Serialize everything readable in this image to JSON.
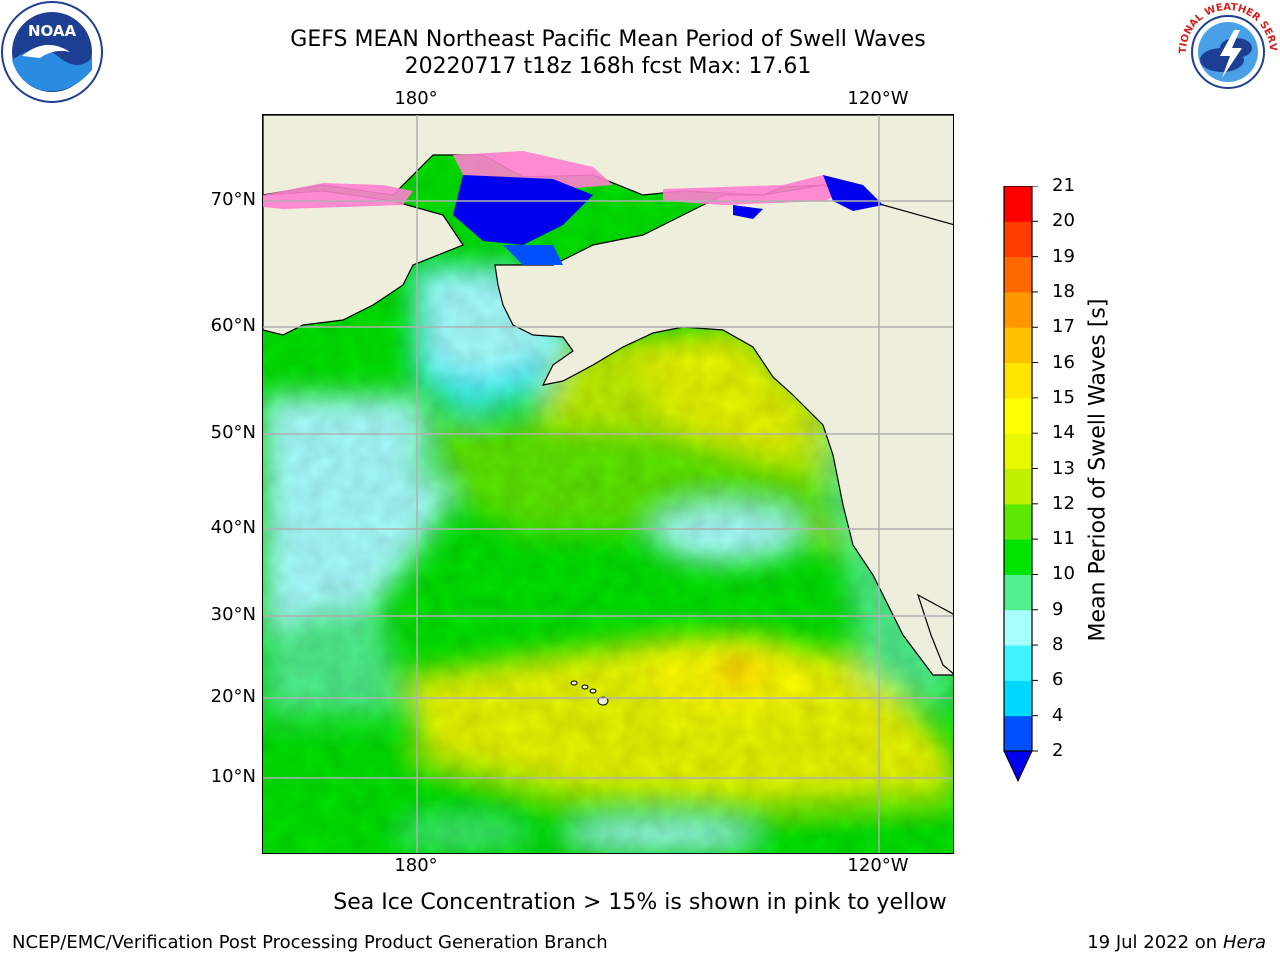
{
  "title": {
    "line1": "GEFS MEAN Northeast Pacific Mean Period of Swell Waves",
    "line2": "20220717 t18z 168h fcst   Max: 17.61"
  },
  "axes": {
    "lon_labels": [
      "180°",
      "120°W"
    ],
    "lat_labels": [
      "70°N",
      "60°N",
      "50°N",
      "40°N",
      "30°N",
      "20°N",
      "10°N"
    ]
  },
  "colorbar": {
    "label": "Mean Period of Swell Waves [s]",
    "ticks": [
      "2",
      "4",
      "6",
      "8",
      "9",
      "10",
      "11",
      "12",
      "13",
      "14",
      "15",
      "16",
      "17",
      "18",
      "19",
      "20",
      "21"
    ],
    "colors": [
      "#0050ff",
      "#00d8ff",
      "#40f4ff",
      "#a8ffff",
      "#50f08c",
      "#00e400",
      "#5ce800",
      "#c0f000",
      "#e8f800",
      "#ffff00",
      "#ffe400",
      "#ffc000",
      "#ff9800",
      "#ff6a00",
      "#ff3c00",
      "#ff0000"
    ],
    "under_color": "#0000ee"
  },
  "note": "Sea Ice Concentration > 15% is shown in pink to yellow",
  "footer": {
    "left": "NCEP/EMC/Verification Post Processing Product Generation Branch",
    "date": "19 Jul 2022 on",
    "host": "Hera"
  },
  "logos": {
    "noaa_text": "NOAA",
    "nws_text": "NATIONAL WEATHER SERVICE"
  },
  "colors": {
    "land": "#eeeedd",
    "grid": "#b0b0b0"
  }
}
